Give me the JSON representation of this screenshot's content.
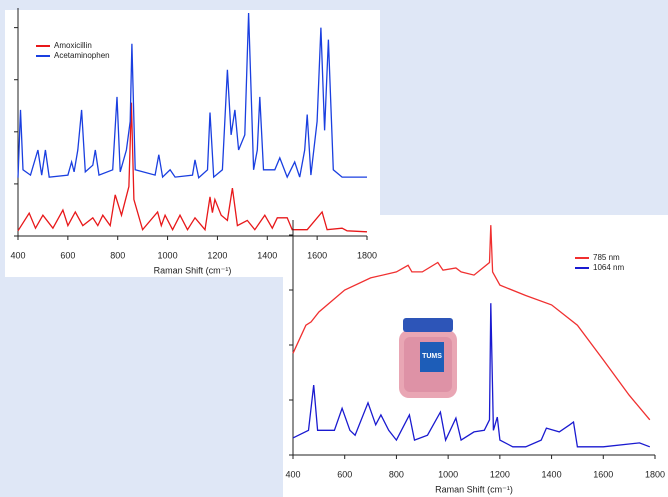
{
  "chart_data": [
    {
      "type": "line",
      "xlabel": "Raman Shift (cm⁻¹)",
      "xlim": [
        400,
        1800
      ],
      "xticks": [
        400,
        600,
        800,
        1000,
        1200,
        1400,
        1600,
        1800
      ],
      "ylim": [
        0,
        4.3
      ],
      "yticks": [
        0,
        1,
        2,
        3,
        4
      ],
      "legend": "upper left",
      "series": [
        {
          "name": "Amoxicillin",
          "color": "#e8181a",
          "x": [
            400,
            445,
            470,
            500,
            540,
            580,
            600,
            630,
            660,
            700,
            720,
            740,
            770,
            790,
            815,
            845,
            855,
            865,
            900,
            960,
            975,
            990,
            1020,
            1050,
            1080,
            1110,
            1150,
            1170,
            1180,
            1190,
            1215,
            1240,
            1260,
            1280,
            1320,
            1350,
            1390,
            1420,
            1440,
            1480,
            1500,
            1560,
            1620,
            1640,
            1700,
            1720,
            1800
          ],
          "values": [
            0.1,
            0.44,
            0.15,
            0.4,
            0.15,
            0.5,
            0.2,
            0.46,
            0.2,
            0.35,
            0.2,
            0.4,
            0.2,
            0.79,
            0.4,
            0.95,
            2.56,
            0.7,
            0.12,
            0.46,
            0.2,
            0.4,
            0.12,
            0.4,
            0.12,
            0.35,
            0.12,
            0.75,
            0.45,
            0.7,
            0.4,
            0.3,
            0.92,
            0.2,
            0.3,
            0.12,
            0.4,
            0.15,
            0.35,
            0.35,
            0.12,
            0.12,
            0.46,
            0.12,
            0.15,
            0.1,
            0.08
          ]
        },
        {
          "name": "Acetaminophen",
          "color": "#1a3fe0",
          "x": [
            400,
            410,
            420,
            450,
            480,
            495,
            510,
            525,
            600,
            615,
            625,
            640,
            655,
            670,
            700,
            710,
            725,
            780,
            797,
            810,
            835,
            850,
            857,
            870,
            950,
            965,
            980,
            1010,
            1030,
            1100,
            1110,
            1125,
            1160,
            1170,
            1185,
            1220,
            1240,
            1255,
            1270,
            1285,
            1310,
            1325,
            1345,
            1360,
            1370,
            1385,
            1430,
            1450,
            1480,
            1510,
            1530,
            1550,
            1560,
            1575,
            1600,
            1615,
            1630,
            1645,
            1665,
            1700,
            1800
          ],
          "values": [
            1.12,
            2.42,
            1.27,
            1.17,
            1.65,
            1.17,
            1.65,
            1.13,
            1.17,
            1.42,
            1.23,
            1.65,
            2.42,
            1.23,
            1.36,
            1.65,
            1.17,
            1.27,
            2.67,
            1.23,
            1.65,
            2.2,
            3.69,
            1.27,
            1.17,
            1.56,
            1.13,
            1.27,
            1.13,
            1.17,
            1.46,
            1.12,
            1.27,
            2.37,
            1.13,
            1.27,
            3.19,
            1.94,
            2.42,
            1.65,
            1.94,
            4.28,
            1.27,
            1.65,
            2.67,
            1.27,
            1.27,
            1.5,
            1.13,
            1.42,
            1.13,
            1.65,
            2.33,
            1.17,
            2.2,
            4.0,
            2.03,
            3.77,
            1.27,
            1.13,
            1.13
          ]
        }
      ]
    },
    {
      "type": "line",
      "xlabel": "Raman Shift (cm⁻¹)",
      "xlim": [
        400,
        1800
      ],
      "xticks": [
        400,
        600,
        800,
        1000,
        1200,
        1400,
        1600,
        1800
      ],
      "ylim": [
        0,
        4.2
      ],
      "yticks": [
        0,
        1,
        2,
        3,
        4
      ],
      "legend": "upper right",
      "series": [
        {
          "name": "785 nm",
          "color": "#f03030",
          "x": [
            400,
            450,
            470,
            500,
            600,
            700,
            800,
            845,
            860,
            900,
            960,
            980,
            1030,
            1050,
            1100,
            1160,
            1165,
            1172,
            1200,
            1300,
            1400,
            1500,
            1600,
            1700,
            1780
          ],
          "values": [
            1.85,
            2.36,
            2.42,
            2.6,
            3.0,
            3.22,
            3.33,
            3.45,
            3.33,
            3.33,
            3.5,
            3.36,
            3.4,
            3.33,
            3.27,
            3.5,
            4.18,
            3.33,
            3.09,
            2.9,
            2.73,
            2.36,
            1.73,
            1.09,
            0.64
          ]
        },
        {
          "name": "1064 nm",
          "color": "#1a1ad0",
          "x": [
            400,
            460,
            480,
            495,
            560,
            590,
            620,
            640,
            690,
            720,
            740,
            770,
            800,
            850,
            870,
            920,
            970,
            990,
            1030,
            1050,
            1100,
            1140,
            1160,
            1165,
            1175,
            1190,
            1200,
            1250,
            1300,
            1360,
            1380,
            1430,
            1470,
            1485,
            1500,
            1600,
            1740,
            1780
          ],
          "values": [
            0.31,
            0.45,
            1.27,
            0.45,
            0.45,
            0.85,
            0.45,
            0.36,
            0.95,
            0.55,
            0.73,
            0.45,
            0.27,
            0.73,
            0.27,
            0.36,
            0.78,
            0.27,
            0.67,
            0.27,
            0.42,
            0.45,
            0.64,
            2.76,
            0.45,
            0.69,
            0.27,
            0.15,
            0.15,
            0.27,
            0.49,
            0.42,
            0.55,
            0.6,
            0.15,
            0.15,
            0.22,
            0.15
          ]
        }
      ]
    }
  ]
}
